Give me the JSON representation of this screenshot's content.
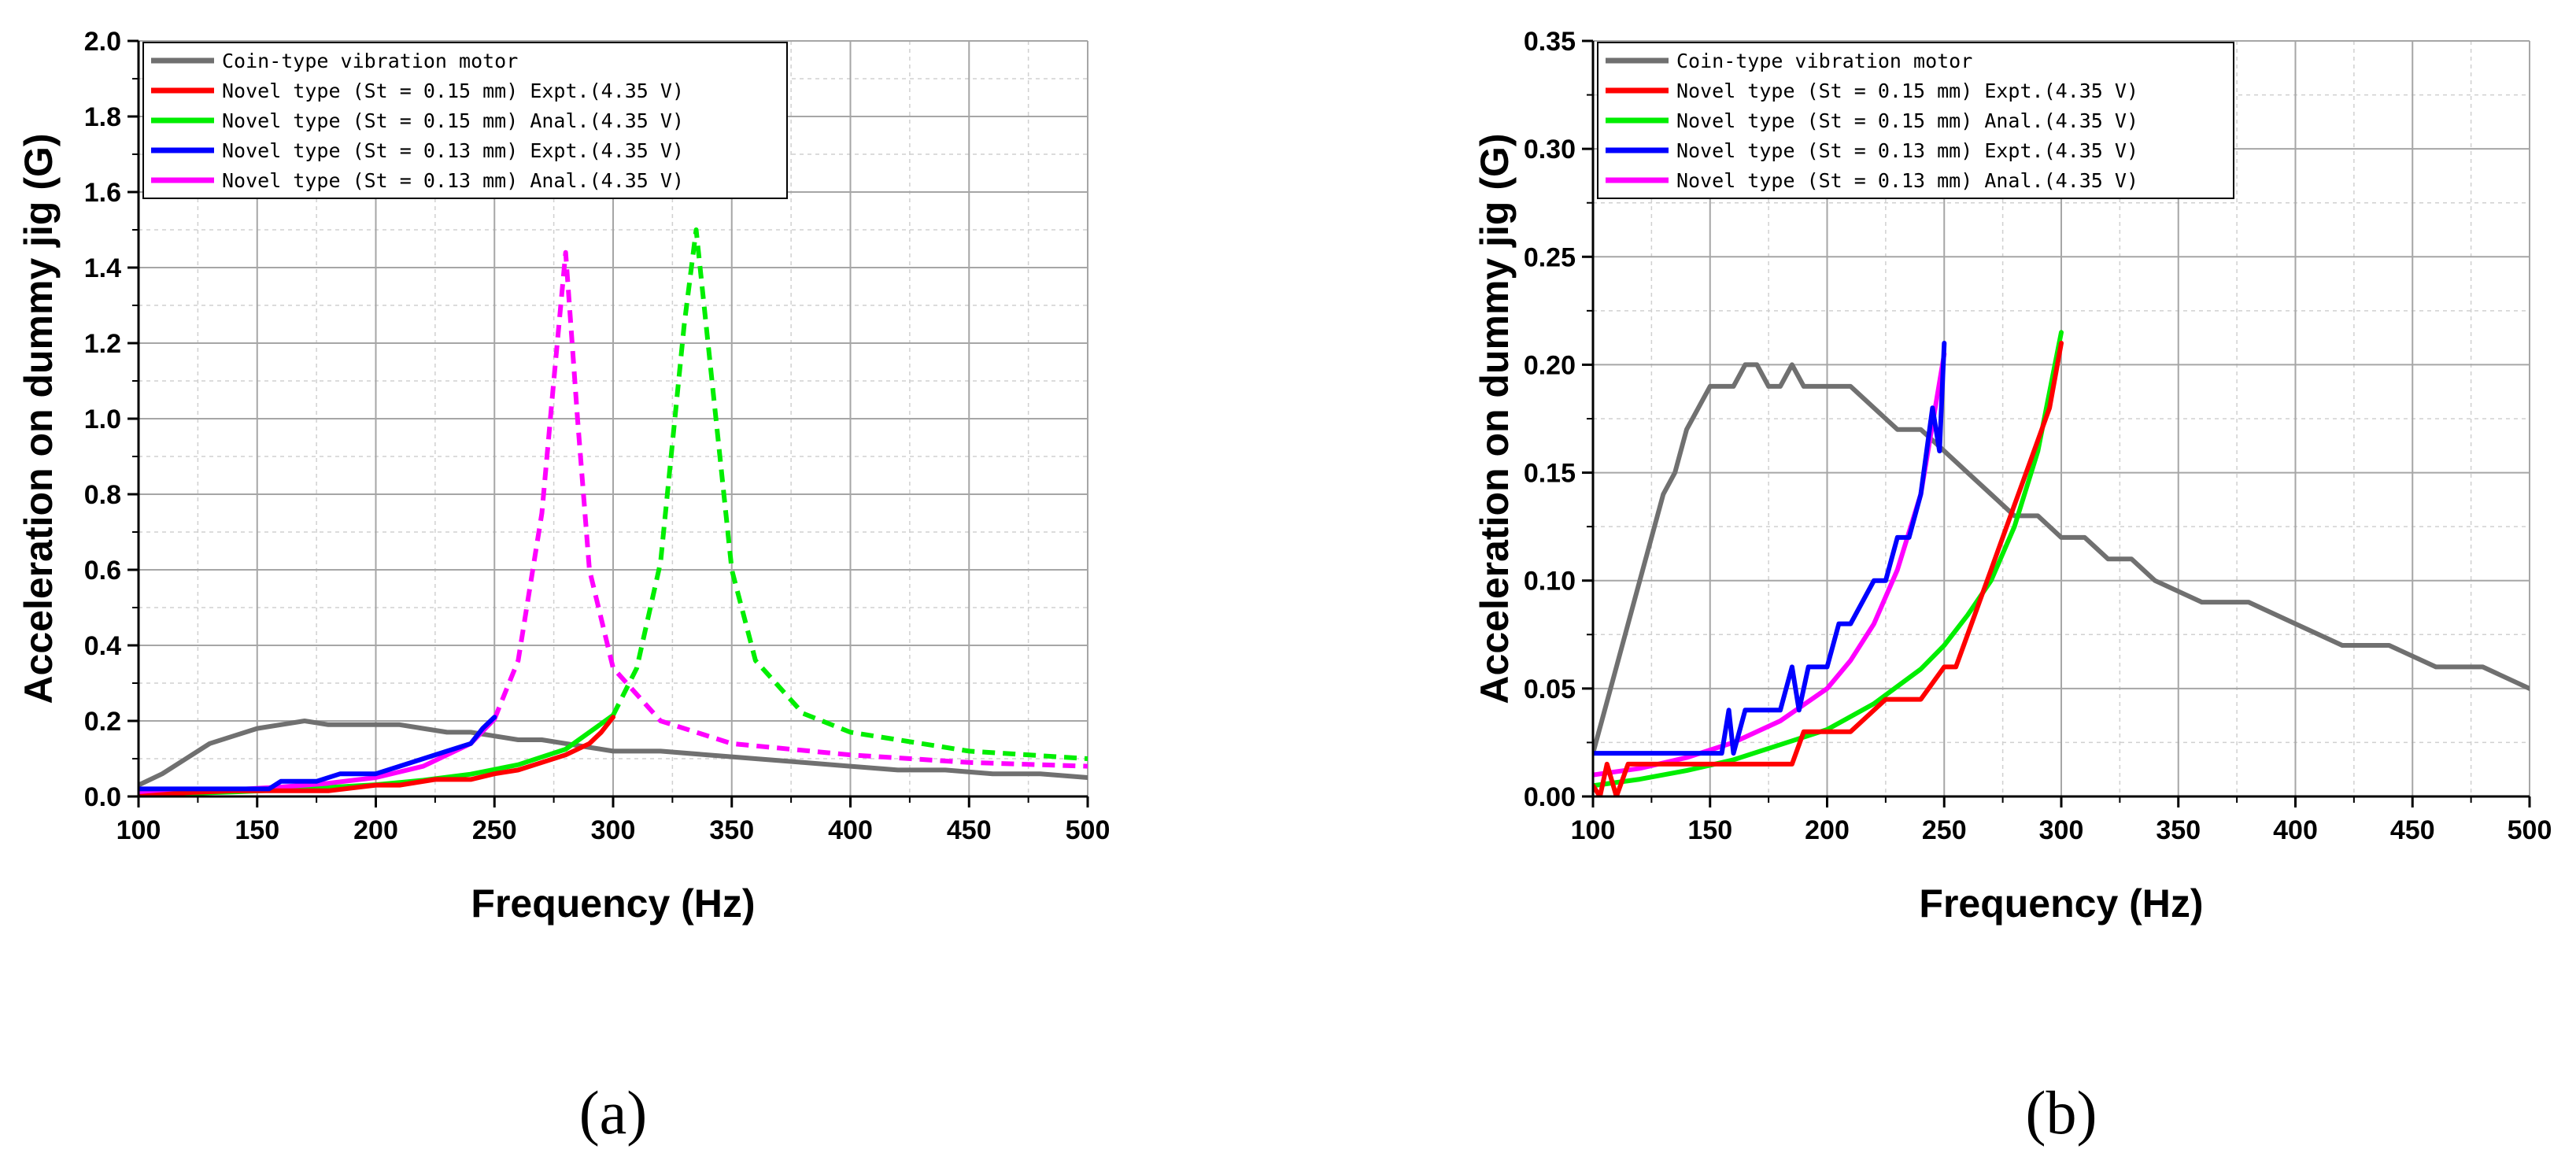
{
  "chart_data": [
    {
      "type": "line",
      "panel_label": "(a)",
      "xlabel": "Frequency (Hz)",
      "ylabel": "Acceleration on dummy jig (G)",
      "xlim": [
        100,
        500
      ],
      "ylim": [
        0,
        2.0
      ],
      "xticks": [
        100,
        150,
        200,
        250,
        300,
        350,
        400,
        450,
        500
      ],
      "yticks": [
        0.0,
        0.2,
        0.4,
        0.6,
        0.8,
        1.0,
        1.2,
        1.4,
        1.6,
        1.8,
        2.0
      ],
      "tick_labels_x": [
        "100",
        "150",
        "200",
        "250",
        "300",
        "350",
        "400",
        "450",
        "500"
      ],
      "tick_labels_y": [
        "0.0",
        "0.2",
        "0.4",
        "0.6",
        "0.8",
        "1.0",
        "1.2",
        "1.4",
        "1.6",
        "1.8",
        "2.0"
      ],
      "grid": true,
      "legend_position": "top-left",
      "series": [
        {
          "name": "Coin-type vibration motor",
          "color": "#707070",
          "style": "solid",
          "x": [
            100,
            110,
            120,
            130,
            140,
            150,
            160,
            170,
            180,
            190,
            200,
            210,
            220,
            230,
            240,
            250,
            260,
            270,
            280,
            290,
            300,
            320,
            340,
            360,
            380,
            400,
            420,
            440,
            460,
            480,
            500
          ],
          "y": [
            0.03,
            0.06,
            0.1,
            0.14,
            0.16,
            0.18,
            0.19,
            0.2,
            0.19,
            0.19,
            0.19,
            0.19,
            0.18,
            0.17,
            0.17,
            0.16,
            0.15,
            0.15,
            0.14,
            0.13,
            0.12,
            0.12,
            0.11,
            0.1,
            0.09,
            0.08,
            0.07,
            0.07,
            0.06,
            0.06,
            0.05
          ]
        },
        {
          "name": "Novel type (St = 0.15 mm) Expt.(4.35 V)",
          "color": "#ff0000",
          "style": "solid",
          "x": [
            100,
            120,
            140,
            160,
            180,
            200,
            210,
            225,
            240,
            250,
            260,
            270,
            280,
            290,
            295,
            300
          ],
          "y": [
            0.0,
            0.01,
            0.015,
            0.015,
            0.015,
            0.03,
            0.03,
            0.045,
            0.045,
            0.06,
            0.07,
            0.09,
            0.11,
            0.14,
            0.17,
            0.21
          ]
        },
        {
          "name": "Novel type (St = 0.15 mm) Anal.(4.35 V)",
          "color": "#00ee00",
          "style": "solid-then-dashed",
          "split_x": 300,
          "x": [
            100,
            120,
            140,
            160,
            180,
            200,
            220,
            240,
            260,
            280,
            300,
            310,
            320,
            330,
            335,
            340,
            350,
            360,
            380,
            400,
            450,
            500
          ],
          "y": [
            0.005,
            0.008,
            0.012,
            0.017,
            0.024,
            0.031,
            0.043,
            0.059,
            0.084,
            0.125,
            0.215,
            0.34,
            0.62,
            1.25,
            1.5,
            1.2,
            0.6,
            0.36,
            0.22,
            0.17,
            0.12,
            0.1
          ]
        },
        {
          "name": "Novel type (St = 0.13 mm) Expt.(4.35 V)",
          "color": "#0000ff",
          "style": "solid",
          "x": [
            100,
            120,
            140,
            155,
            160,
            175,
            185,
            190,
            200,
            210,
            220,
            230,
            240,
            245,
            250
          ],
          "y": [
            0.02,
            0.02,
            0.02,
            0.02,
            0.04,
            0.04,
            0.06,
            0.06,
            0.06,
            0.08,
            0.1,
            0.12,
            0.14,
            0.18,
            0.21
          ]
        },
        {
          "name": "Novel type (St = 0.13 mm) Anal.(4.35 V)",
          "color": "#ff00ff",
          "style": "solid-then-dashed",
          "split_x": 250,
          "x": [
            100,
            120,
            140,
            160,
            180,
            200,
            220,
            240,
            250,
            260,
            270,
            275,
            280,
            285,
            290,
            300,
            320,
            350,
            400,
            450,
            500
          ],
          "y": [
            0.01,
            0.013,
            0.018,
            0.025,
            0.035,
            0.05,
            0.08,
            0.14,
            0.205,
            0.36,
            0.75,
            1.1,
            1.44,
            1.0,
            0.6,
            0.34,
            0.2,
            0.14,
            0.11,
            0.09,
            0.08
          ]
        }
      ]
    },
    {
      "type": "line",
      "panel_label": "(b)",
      "xlabel": "Frequency (Hz)",
      "ylabel": "Acceleration on dummy jig (G)",
      "xlim": [
        100,
        500
      ],
      "ylim": [
        0,
        0.35
      ],
      "xticks": [
        100,
        150,
        200,
        250,
        300,
        350,
        400,
        450,
        500
      ],
      "yticks": [
        0.0,
        0.05,
        0.1,
        0.15,
        0.2,
        0.25,
        0.3,
        0.35
      ],
      "tick_labels_x": [
        "100",
        "150",
        "200",
        "250",
        "300",
        "350",
        "400",
        "450",
        "500"
      ],
      "tick_labels_y": [
        "0.00",
        "0.05",
        "0.10",
        "0.15",
        "0.20",
        "0.25",
        "0.30",
        "0.35"
      ],
      "grid": true,
      "legend_position": "top-left",
      "series": [
        {
          "name": "Coin-type vibration motor",
          "color": "#707070",
          "style": "solid",
          "x": [
            100,
            105,
            110,
            115,
            120,
            125,
            130,
            135,
            140,
            145,
            150,
            155,
            160,
            165,
            170,
            175,
            180,
            185,
            190,
            200,
            210,
            220,
            230,
            240,
            250,
            260,
            270,
            280,
            290,
            300,
            310,
            320,
            330,
            340,
            360,
            380,
            400,
            420,
            440,
            460,
            480,
            500
          ],
          "y": [
            0.02,
            0.04,
            0.06,
            0.08,
            0.1,
            0.12,
            0.14,
            0.15,
            0.17,
            0.18,
            0.19,
            0.19,
            0.19,
            0.2,
            0.2,
            0.19,
            0.19,
            0.2,
            0.19,
            0.19,
            0.19,
            0.18,
            0.17,
            0.17,
            0.16,
            0.15,
            0.14,
            0.13,
            0.13,
            0.12,
            0.12,
            0.11,
            0.11,
            0.1,
            0.09,
            0.09,
            0.08,
            0.07,
            0.07,
            0.06,
            0.06,
            0.05
          ]
        },
        {
          "name": "Novel type (St = 0.15 mm) Expt.(4.35 V)",
          "color": "#ff0000",
          "style": "solid",
          "x": [
            100,
            103,
            106,
            110,
            115,
            120,
            140,
            160,
            185,
            190,
            210,
            225,
            240,
            250,
            255,
            260,
            265,
            270,
            275,
            280,
            285,
            290,
            295,
            300
          ],
          "y": [
            0.005,
            0.0,
            0.015,
            0.0,
            0.015,
            0.015,
            0.015,
            0.015,
            0.015,
            0.03,
            0.03,
            0.045,
            0.045,
            0.06,
            0.06,
            0.075,
            0.09,
            0.105,
            0.12,
            0.135,
            0.15,
            0.165,
            0.18,
            0.21
          ]
        },
        {
          "name": "Novel type (St = 0.15 mm) Anal.(4.35 V)",
          "color": "#00ee00",
          "style": "solid",
          "x": [
            100,
            120,
            140,
            160,
            180,
            200,
            220,
            240,
            250,
            260,
            270,
            280,
            290,
            300
          ],
          "y": [
            0.005,
            0.008,
            0.012,
            0.017,
            0.024,
            0.031,
            0.043,
            0.059,
            0.07,
            0.084,
            0.1,
            0.125,
            0.16,
            0.215
          ]
        },
        {
          "name": "Novel type (St = 0.13 mm) Expt.(4.35 V)",
          "color": "#0000ff",
          "style": "solid",
          "x": [
            100,
            120,
            140,
            155,
            158,
            160,
            165,
            170,
            180,
            185,
            188,
            192,
            200,
            205,
            210,
            220,
            225,
            230,
            235,
            240,
            245,
            248,
            250
          ],
          "y": [
            0.02,
            0.02,
            0.02,
            0.02,
            0.04,
            0.02,
            0.04,
            0.04,
            0.04,
            0.06,
            0.04,
            0.06,
            0.06,
            0.08,
            0.08,
            0.1,
            0.1,
            0.12,
            0.12,
            0.14,
            0.18,
            0.16,
            0.21
          ]
        },
        {
          "name": "Novel type (St = 0.13 mm) Anal.(4.35 V)",
          "color": "#ff00ff",
          "style": "solid",
          "x": [
            100,
            120,
            140,
            160,
            180,
            200,
            210,
            220,
            230,
            240,
            250
          ],
          "y": [
            0.01,
            0.013,
            0.018,
            0.025,
            0.035,
            0.05,
            0.063,
            0.08,
            0.105,
            0.14,
            0.205
          ]
        }
      ]
    }
  ]
}
